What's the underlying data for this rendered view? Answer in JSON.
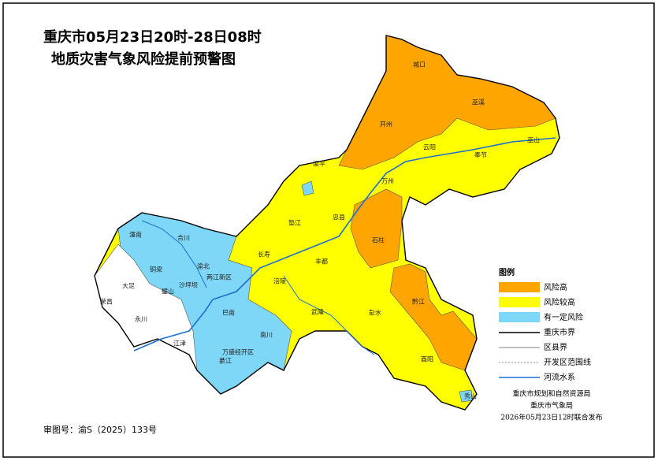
{
  "title": [
    "重庆市05月23日20时-28日08时",
    "地质灾害气象风险提前预警图"
  ],
  "legend": {
    "title": "图例",
    "items": [
      "风险高",
      "风险较高",
      "有一定风险",
      "重庆市界",
      "区县界",
      "开发区范围线",
      "河流水系"
    ]
  },
  "districts": [
    "城口",
    "巫溪",
    "开州",
    "云阳",
    "巫山",
    "奉节",
    "梁平",
    "万州",
    "忠县",
    "垫江",
    "石柱",
    "潼南",
    "合川",
    "长寿",
    "丰都",
    "铜梁",
    "渝北",
    "大足",
    "璧山",
    "两江新区",
    "沙坪坝",
    "涪陵",
    "荣昌",
    "永川",
    "巴南",
    "武隆",
    "彭水",
    "黔江",
    "江津",
    "南川",
    "綦江",
    "万盛经开区",
    "酉阳",
    "秀山"
  ],
  "credits": [
    "重庆市规划和自然资源局",
    "重庆市气象局",
    "2026年05月23日12时联合发布"
  ],
  "approval": "审图号：渝S（2025）133号"
}
